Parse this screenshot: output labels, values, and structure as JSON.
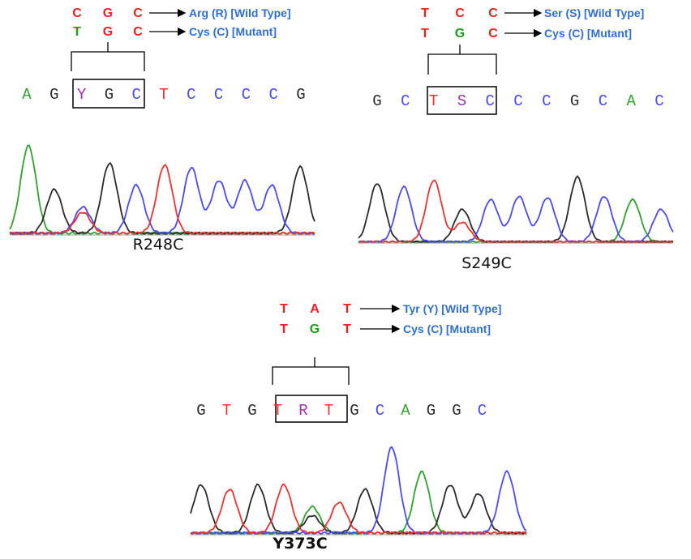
{
  "panels": [
    {
      "wild_codon": [
        "C",
        "G",
        "C"
      ],
      "wild_label": "Arg (R) [Wild Type]",
      "mutant_codon": [
        "T",
        "G",
        "C"
      ],
      "mutant_label": "Cys (C) [Mutant]",
      "sequence": [
        "A",
        "G",
        "Y",
        "G",
        "C",
        "T",
        "C",
        "C",
        "C",
        "C",
        "G"
      ],
      "name": "R248C"
    },
    {
      "wild_codon": [
        "T",
        "C",
        "C"
      ],
      "wild_label": "Ser (S) [Wild Type]",
      "mutant_codon": [
        "T",
        "G",
        "C"
      ],
      "mutant_label": "Cys (C) [Mutant]",
      "sequence": [
        "G",
        "C",
        "T",
        "S",
        "C",
        "C",
        "C",
        "G",
        "C",
        "A",
        "C"
      ],
      "name": "S249C"
    },
    {
      "wild_codon": [
        "T",
        "A",
        "T"
      ],
      "wild_label": "Tyr (Y) [Wild Type]",
      "mutant_codon": [
        "T",
        "G",
        "T"
      ],
      "mutant_label": "Cys (C) [Mutant]",
      "sequence": [
        "G",
        "T",
        "G",
        "T",
        "R",
        "T",
        "G",
        "C",
        "A",
        "G",
        "G",
        "C"
      ],
      "name": "Y373C"
    }
  ]
}
